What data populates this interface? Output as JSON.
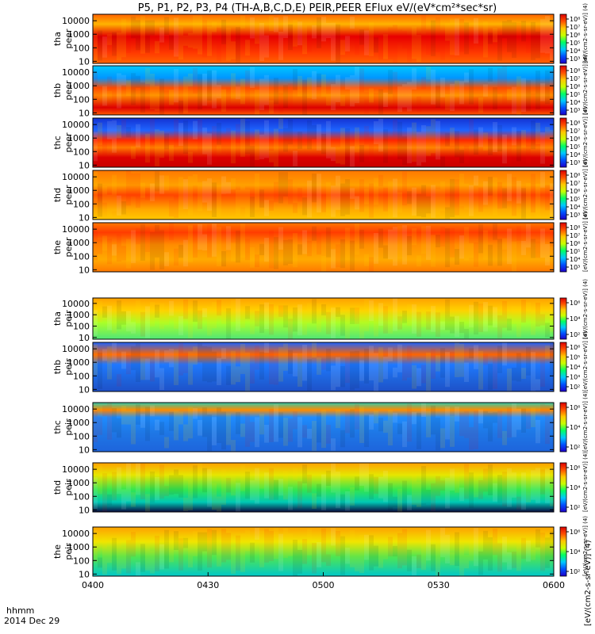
{
  "chart_data": {
    "type": "heatmap",
    "title": "P5, P1, P2, P3, P4 (TH-A,B,C,D,E) PEIR,PEER EFlux eV/(eV*cm²*sec*sr)",
    "x_axis": {
      "label_line1": "hhmm",
      "label_line2": "2014 Dec 29",
      "range": [
        "0400",
        "0600"
      ],
      "ticks": [
        "0400",
        "0430",
        "0500",
        "0530",
        "0600"
      ]
    },
    "y_axis": {
      "scale": "log",
      "range_eV": [
        7,
        30000
      ],
      "tick_labels": [
        "10000",
        "1000",
        "100",
        "10"
      ]
    },
    "colorbar": {
      "scale": "log",
      "label_electron": "[eV/(cm2-s-sr-eV)] (4)",
      "label_ion": "[eV/(cm2-s-sr-eV)] (4)",
      "label_bottom": "[eV/(cm2-s-sr-eV)] (4)",
      "colors": [
        "#1e00c8",
        "#0050ff",
        "#00c8ff",
        "#00ff64",
        "#c8ff00",
        "#ffc800",
        "#ff5000",
        "#dc0000"
      ]
    },
    "panels": [
      {
        "id": "tha_peer",
        "label_probe": "tha",
        "label_product": "peer",
        "colorbar_ticks": [
          "10⁸",
          "10⁷",
          "10⁶",
          "10⁵",
          "10⁴",
          "10³"
        ]
      },
      {
        "id": "thb_peer",
        "label_probe": "thb",
        "label_product": "peer",
        "colorbar_ticks": [
          "10⁸",
          "10⁷",
          "10⁶",
          "10⁵",
          "10⁴",
          "10³"
        ]
      },
      {
        "id": "thc_peer",
        "label_probe": "thc",
        "label_product": "peer",
        "colorbar_ticks": [
          "10⁸",
          "10⁷",
          "10⁶",
          "10⁵",
          "10⁴",
          "10³"
        ]
      },
      {
        "id": "thd_peer",
        "label_probe": "thd",
        "label_product": "peer",
        "colorbar_ticks": [
          "10⁸",
          "10⁷",
          "10⁶",
          "10⁵",
          "10⁴",
          "10³"
        ]
      },
      {
        "id": "the_peer",
        "label_probe": "the",
        "label_product": "peer",
        "colorbar_ticks": [
          "10⁸",
          "10⁷",
          "10⁶",
          "10⁵",
          "10⁴",
          "10³"
        ]
      },
      {
        "id": "tha_peir",
        "label_probe": "tha",
        "label_product": "peir",
        "colorbar_ticks": [
          "10⁶",
          "10⁴",
          "10²"
        ]
      },
      {
        "id": "thb_peir",
        "label_probe": "thb",
        "label_product": "peir",
        "colorbar_ticks": [
          "10⁶",
          "10⁵",
          "10⁴",
          "10³",
          "10²"
        ]
      },
      {
        "id": "thc_peir",
        "label_probe": "thc",
        "label_product": "peir",
        "colorbar_ticks": [
          "10⁶",
          "10⁴",
          "10²"
        ]
      },
      {
        "id": "thd_peir",
        "label_probe": "thd",
        "label_product": "peir",
        "colorbar_ticks": [
          "10⁶",
          "10⁴",
          "10²"
        ]
      },
      {
        "id": "the_peir",
        "label_probe": "the",
        "label_product": "peir",
        "colorbar_ticks": [
          "10⁶",
          "10⁴",
          "10²"
        ]
      }
    ]
  }
}
